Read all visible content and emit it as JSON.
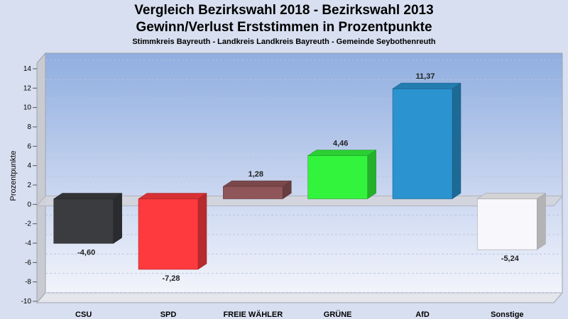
{
  "chart_data": {
    "type": "bar",
    "title": "Vergleich Bezirkswahl 2018 - Bezirkswahl 2013",
    "subtitle": "Gewinn/Verlust Erststimmen in Prozentpunkte",
    "caption": "Stimmkreis Bayreuth - Landkreis Landkreis Bayreuth - Gemeinde Seybothenreuth",
    "ylabel": "Prozentpunkte",
    "xlabel": "",
    "ylim": [
      -10,
      14
    ],
    "yticks": [
      -10,
      -8,
      -6,
      -4,
      -2,
      0,
      2,
      4,
      6,
      8,
      10,
      12,
      14
    ],
    "grid": true,
    "categories": [
      "CSU",
      "SPD",
      "FREIE WÄHLER",
      "GRÜNE",
      "AfD",
      "Sonstige"
    ],
    "values": [
      -4.6,
      -7.28,
      1.28,
      4.46,
      11.37,
      -5.24
    ],
    "value_labels": [
      "-4,60",
      "-7,28",
      "1,28",
      "4,46",
      "11,37",
      "-5,24"
    ],
    "colors": [
      "#3a3c40",
      "#fe3a3e",
      "#8f5558",
      "#33f43d",
      "#2a93d0",
      "#f8f8fc"
    ]
  }
}
